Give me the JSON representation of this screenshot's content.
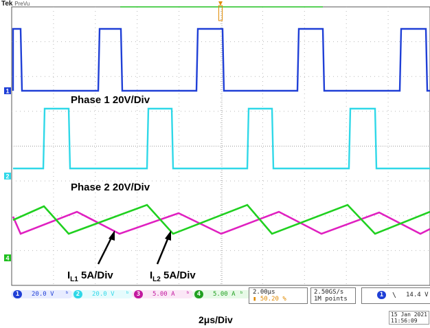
{
  "brand": {
    "maker": "Tek",
    "mode": "PreVu"
  },
  "labels": {
    "phase1": "Phase 1 20V/Div",
    "phase2": "Phase 2 20V/Div",
    "il1_main": "I",
    "il1_sub": "L1",
    "il1_scale": "5A/Div",
    "il2_main": "I",
    "il2_sub": "L2",
    "il2_scale": "5A/Div",
    "timebase": "2μs/Div"
  },
  "channels": [
    {
      "num": "1",
      "scale": "20.0 V",
      "color": "#1f3fd6",
      "marker": "1"
    },
    {
      "num": "2",
      "scale": "20.0 V",
      "color": "#2fd8e8",
      "marker": "2"
    },
    {
      "num": "3",
      "scale": "5.00 A",
      "color": "#c2189f",
      "marker": ""
    },
    {
      "num": "4",
      "scale": "5.00 A",
      "color": "#20c020",
      "marker": "4"
    }
  ],
  "horizontal": {
    "scale": "2.00μs",
    "position": "50.20 %"
  },
  "acquisition": {
    "rate": "2.50GS/s",
    "record": "1M points"
  },
  "trigger": {
    "channel": "1",
    "slope": "\\",
    "level": "14.4 V"
  },
  "datetime": {
    "date": "15 Jan  2021",
    "time": "11:56:09"
  },
  "colors": {
    "grid": "#b8b8b8",
    "border": "#555555",
    "trigger_marker": "#e08a00"
  }
}
